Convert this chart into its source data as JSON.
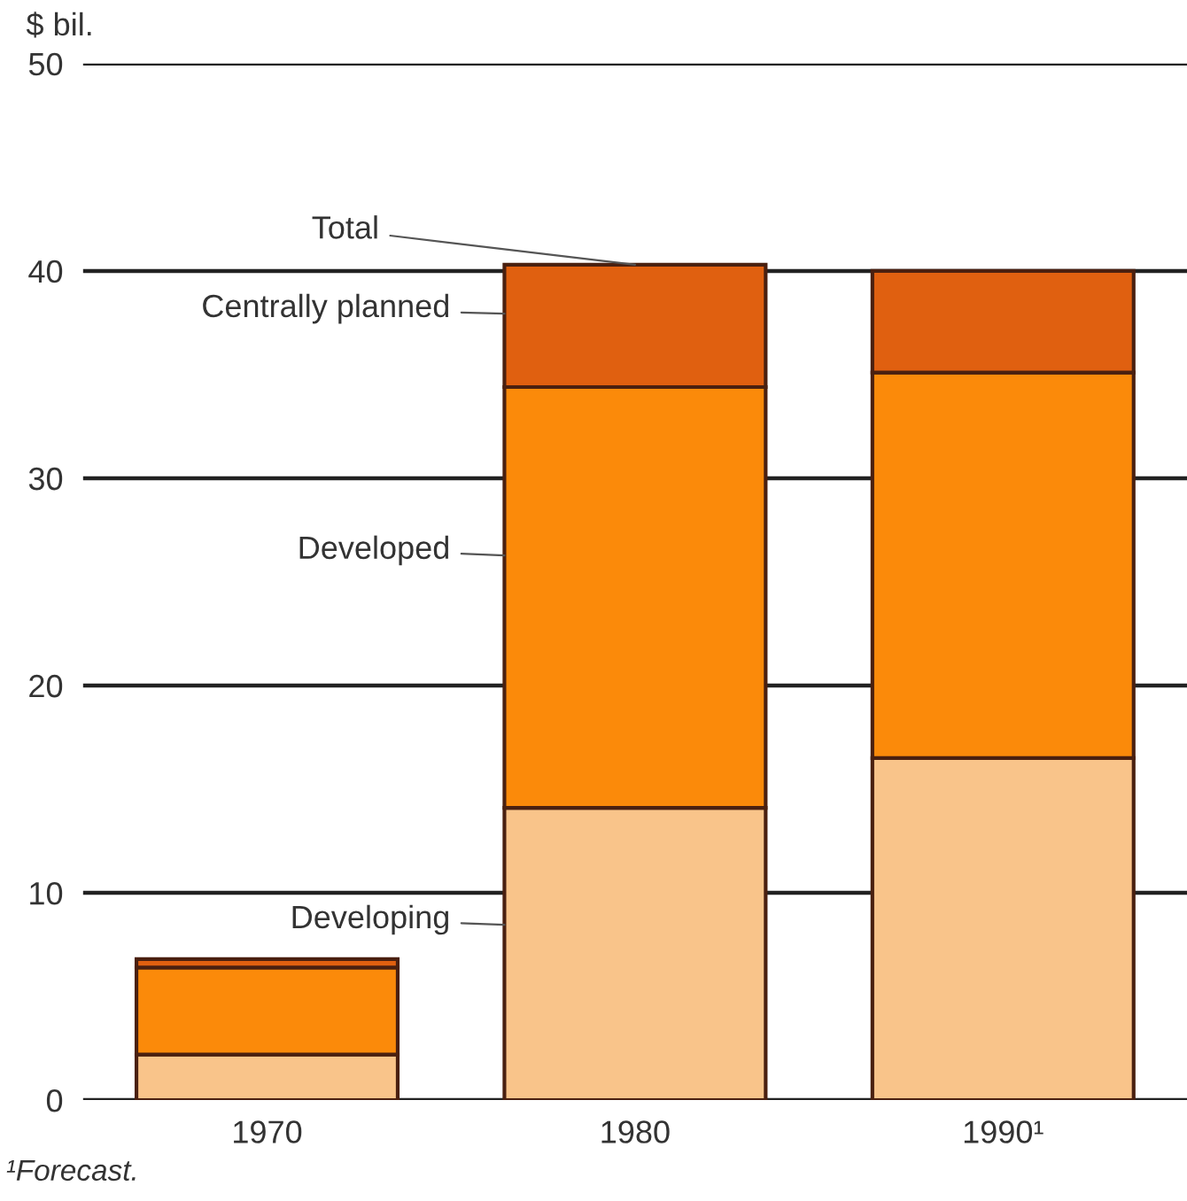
{
  "chart_data": {
    "type": "bar",
    "stacked": true,
    "ylabel": "$ bil.",
    "categories": [
      "1970",
      "1980",
      "1990¹"
    ],
    "series": [
      {
        "name": "Developing",
        "color": "#f9c48a",
        "values": [
          2.2,
          14.1,
          16.5
        ]
      },
      {
        "name": "Developed",
        "color": "#fb8a0a",
        "values": [
          4.2,
          20.3,
          18.6
        ]
      },
      {
        "name": "Centrally planned",
        "color": "#e06010",
        "values": [
          0.4,
          5.9,
          4.9
        ]
      }
    ],
    "ylim": [
      0,
      50
    ],
    "yticks": [
      0,
      10,
      20,
      30,
      40,
      50
    ],
    "grid": "y",
    "legend": false,
    "annotations": [
      {
        "text": "Total",
        "x": "1980",
        "y": 40.3
      },
      "¹Forecast."
    ]
  }
}
